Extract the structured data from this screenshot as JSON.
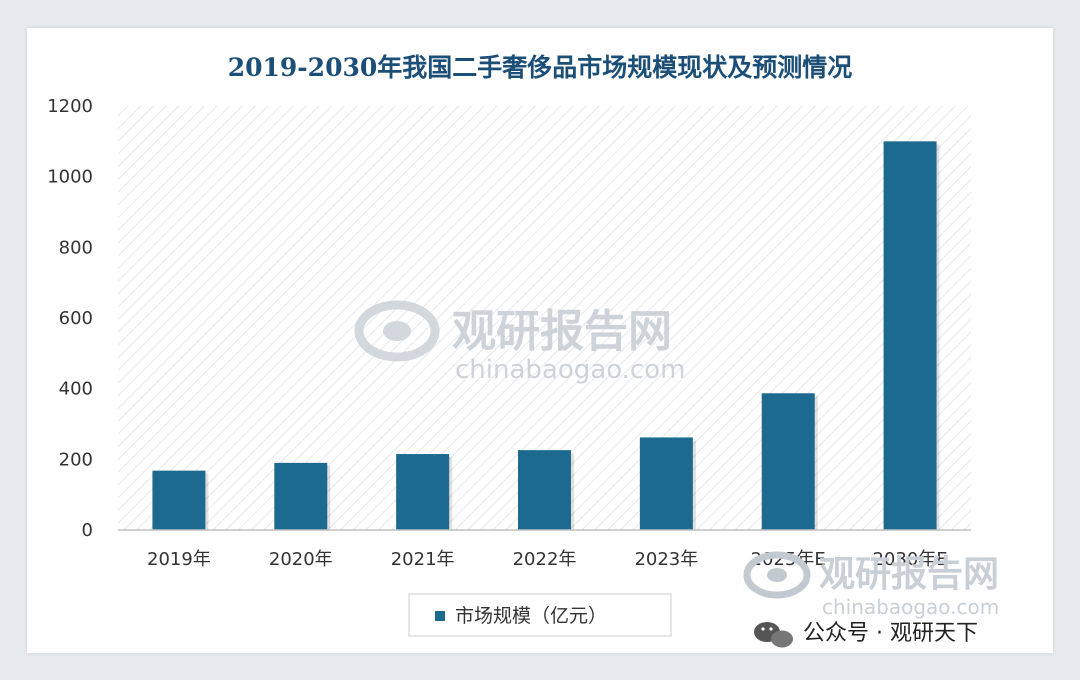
{
  "chart_data": {
    "type": "bar",
    "title": "2019-2030年我国二手奢侈品市场规模现状及预测情况",
    "categories": [
      "2019年",
      "2020年",
      "2021年",
      "2022年",
      "2023年",
      "2025年E",
      "2030年E"
    ],
    "series": [
      {
        "name": "市场规模（亿元）",
        "values": [
          168,
          190,
          215,
          226,
          262,
          387,
          1100
        ]
      }
    ],
    "ylim": [
      0,
      1200
    ],
    "yticks": [
      0,
      200,
      400,
      600,
      800,
      1000,
      1200
    ],
    "xlabel": "",
    "ylabel": "",
    "grid": false,
    "legend_position": "bottom",
    "bar_color": "#1c6a8f"
  },
  "watermark": {
    "name": "观研报告网",
    "url": "chinabaogao.com"
  },
  "credit": {
    "text": "公众号 · 观研天下"
  }
}
